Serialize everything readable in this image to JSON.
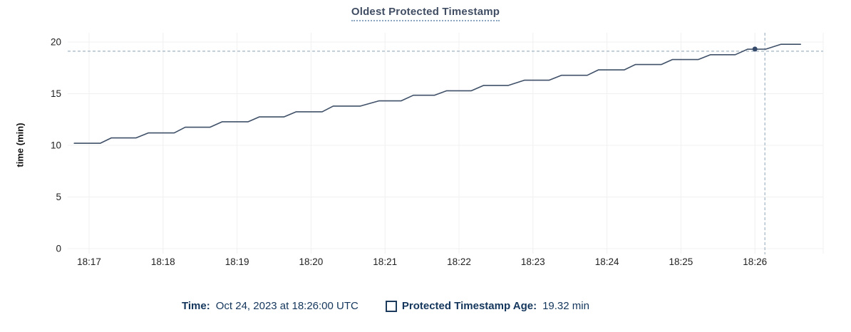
{
  "chart": {
    "title": "Oldest Protected Timestamp"
  },
  "chart_data": {
    "type": "line",
    "title": "Oldest Protected Timestamp",
    "xlabel": "",
    "ylabel": "time (min)",
    "ylim": [
      0,
      20
    ],
    "y_ticks": [
      0,
      5,
      10,
      15,
      20
    ],
    "x_ticks": [
      "18:17",
      "18:18",
      "18:19",
      "18:20",
      "18:21",
      "18:22",
      "18:23",
      "18:24",
      "18:25",
      "18:26"
    ],
    "x_range": [
      "18:16:43",
      "18:26:55"
    ],
    "grid": true,
    "legend_position": "bottom",
    "series": [
      {
        "name": "Protected Timestamp Age",
        "unit": "min",
        "points": [
          [
            "18:16:48",
            10.2
          ],
          [
            "18:17:09",
            10.2
          ],
          [
            "18:17:18",
            10.72
          ],
          [
            "18:17:38",
            10.72
          ],
          [
            "18:17:48",
            11.2
          ],
          [
            "18:18:09",
            11.2
          ],
          [
            "18:18:18",
            11.75
          ],
          [
            "18:18:38",
            11.75
          ],
          [
            "18:18:48",
            12.28
          ],
          [
            "18:19:09",
            12.28
          ],
          [
            "18:19:18",
            12.75
          ],
          [
            "18:19:38",
            12.75
          ],
          [
            "18:19:48",
            13.25
          ],
          [
            "18:20:09",
            13.25
          ],
          [
            "18:20:18",
            13.8
          ],
          [
            "18:20:40",
            13.8
          ],
          [
            "18:20:55",
            14.3
          ],
          [
            "18:21:13",
            14.3
          ],
          [
            "18:21:23",
            14.85
          ],
          [
            "18:21:40",
            14.85
          ],
          [
            "18:21:50",
            15.28
          ],
          [
            "18:22:10",
            15.28
          ],
          [
            "18:22:20",
            15.8
          ],
          [
            "18:22:40",
            15.8
          ],
          [
            "18:22:53",
            16.3
          ],
          [
            "18:23:13",
            16.3
          ],
          [
            "18:23:23",
            16.78
          ],
          [
            "18:23:44",
            16.78
          ],
          [
            "18:23:53",
            17.3
          ],
          [
            "18:24:14",
            17.3
          ],
          [
            "18:24:23",
            17.82
          ],
          [
            "18:24:44",
            17.82
          ],
          [
            "18:24:53",
            18.3
          ],
          [
            "18:25:14",
            18.3
          ],
          [
            "18:25:24",
            18.77
          ],
          [
            "18:25:44",
            18.77
          ],
          [
            "18:25:54",
            19.3
          ],
          [
            "18:26:09",
            19.32
          ],
          [
            "18:26:21",
            19.78
          ],
          [
            "18:26:37",
            19.78
          ]
        ]
      }
    ],
    "hover": {
      "time": "18:26:00",
      "value": 19.32,
      "value_label": "19.32 min"
    }
  },
  "legend": {
    "time_label": "Time:",
    "time_value": "Oct 24, 2023 at 18:26:00 UTC",
    "series_label": "Protected Timestamp Age:",
    "series_value": "19.32 min"
  },
  "colors": {
    "series_line": "#3f5068",
    "hover_dot": "#35496b",
    "crosshair": "#a0b4c4",
    "gridline": "#f0f0f0",
    "tick_text": "#1f1f1f",
    "title_text": "#404d63",
    "title_underline": "#8ba6c1",
    "legend_text": "#14365c"
  }
}
